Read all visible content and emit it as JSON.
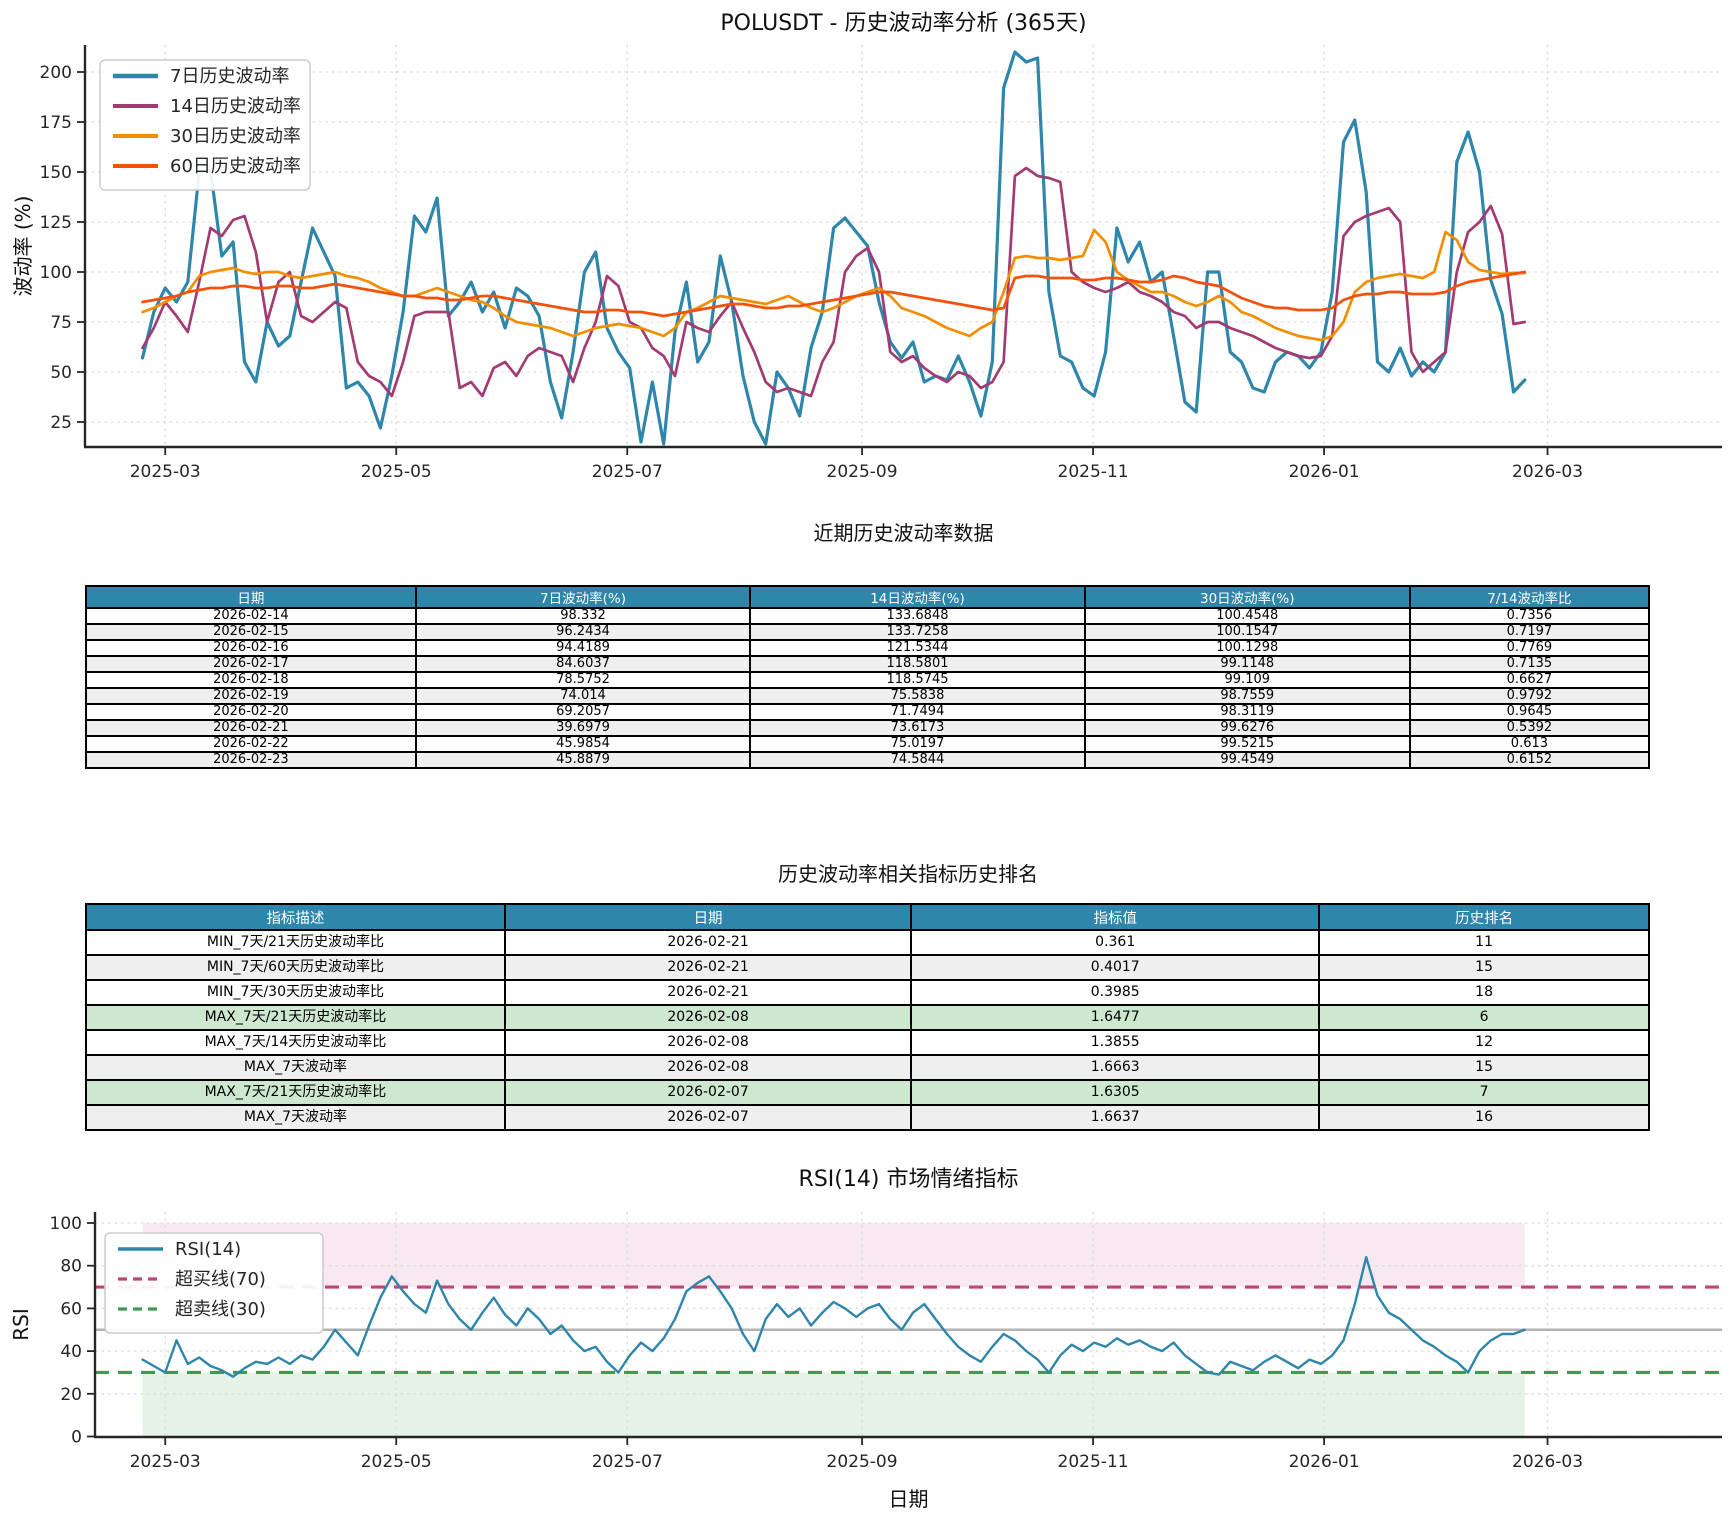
{
  "styles": {
    "table_header_bg": "#2e86ab",
    "table_header_text": "#ffffff",
    "row_alt_bg": "#efefef",
    "row_green_bg": "#cde8cf",
    "grid_color": "#dcdcdc",
    "spine_color": "#262626",
    "series_colors": {
      "vol7": "#2e86ab",
      "vol14": "#a23b72",
      "vol30": "#f18f01",
      "vol60": "#f4510c",
      "rsi": "#2e86ab",
      "overbought": "#c04577",
      "oversold": "#3a9d4f",
      "midline": "#b3b3b3"
    }
  },
  "volatility_table": {
    "title": "近期历史波动率数据",
    "columns": [
      "日期",
      "7日波动率(%)",
      "14日波动率(%)",
      "30日波动率(%)",
      "7/14波动率比"
    ],
    "rows": [
      [
        "2026-02-14",
        "98.332",
        "133.6848",
        "100.4548",
        "0.7356"
      ],
      [
        "2026-02-15",
        "96.2434",
        "133.7258",
        "100.1547",
        "0.7197"
      ],
      [
        "2026-02-16",
        "94.4189",
        "121.5344",
        "100.1298",
        "0.7769"
      ],
      [
        "2026-02-17",
        "84.6037",
        "118.5801",
        "99.1148",
        "0.7135"
      ],
      [
        "2026-02-18",
        "78.5752",
        "118.5745",
        "99.109",
        "0.6627"
      ],
      [
        "2026-02-19",
        "74.014",
        "75.5838",
        "98.7559",
        "0.9792"
      ],
      [
        "2026-02-20",
        "69.2057",
        "71.7494",
        "98.3119",
        "0.9645"
      ],
      [
        "2026-02-21",
        "39.6979",
        "73.6173",
        "99.6276",
        "0.5392"
      ],
      [
        "2026-02-22",
        "45.9854",
        "75.0197",
        "99.5215",
        "0.613"
      ],
      [
        "2026-02-23",
        "45.8879",
        "74.5844",
        "99.4549",
        "0.6152"
      ]
    ],
    "row_highlights": [
      "",
      "alt",
      "",
      "alt",
      "",
      "alt",
      "",
      "alt",
      "",
      "alt"
    ]
  },
  "ranking_table": {
    "title": "历史波动率相关指标历史排名",
    "columns": [
      "指标描述",
      "日期",
      "指标值",
      "历史排名"
    ],
    "rows": [
      [
        "MIN_7天/21天历史波动率比",
        "2026-02-21",
        "0.361",
        "11"
      ],
      [
        "MIN_7天/60天历史波动率比",
        "2026-02-21",
        "0.4017",
        "15"
      ],
      [
        "MIN_7天/30天历史波动率比",
        "2026-02-21",
        "0.3985",
        "18"
      ],
      [
        "MAX_7天/21天历史波动率比",
        "2026-02-08",
        "1.6477",
        "6"
      ],
      [
        "MAX_7天/14天历史波动率比",
        "2026-02-08",
        "1.3855",
        "12"
      ],
      [
        "MAX_7天波动率",
        "2026-02-08",
        "1.6663",
        "15"
      ],
      [
        "MAX_7天/21天历史波动率比",
        "2026-02-07",
        "1.6305",
        "7"
      ],
      [
        "MAX_7天波动率",
        "2026-02-07",
        "1.6637",
        "16"
      ]
    ],
    "row_highlights": [
      "",
      "alt",
      "",
      "green",
      "",
      "alt",
      "green",
      "alt"
    ]
  },
  "chart_data": [
    {
      "type": "line",
      "title": "POLUSDT - 历史波动率分析 (365天)",
      "ylabel": "波动率 (%)",
      "xlabel": "近期历史波动率数据",
      "x_tick_labels": [
        "2025-03",
        "2025-05",
        "2025-07",
        "2025-09",
        "2025-11",
        "2026-01",
        "2026-03"
      ],
      "x_tick_days": [
        6,
        67,
        128,
        190,
        251,
        312,
        371
      ],
      "y_ticks": [
        25,
        50,
        75,
        100,
        125,
        150,
        175,
        200
      ],
      "ylim": [
        12.5,
        213.5
      ],
      "x_range_days": [
        0,
        365
      ],
      "grid": true,
      "legend_position": "upper-left",
      "series": [
        {
          "name": "7日历史波动率",
          "color": "#2e86ab",
          "width": 3.2,
          "values": [
            57,
            80,
            92,
            85,
            95,
            150,
            151,
            108,
            115,
            55,
            45,
            75,
            63,
            68,
            95,
            122,
            110,
            98,
            42,
            45,
            38,
            22,
            48,
            80,
            128,
            120,
            137,
            78,
            85,
            95,
            80,
            90,
            72,
            92,
            88,
            78,
            45,
            27,
            60,
            100,
            110,
            72,
            60,
            52,
            15,
            45,
            14,
            70,
            95,
            55,
            65,
            108,
            85,
            48,
            25,
            14,
            50,
            42,
            28,
            62,
            80,
            122,
            127,
            120,
            113,
            85,
            65,
            57,
            65,
            45,
            48,
            46,
            58,
            45,
            28,
            55,
            192,
            210,
            205,
            207,
            90,
            58,
            55,
            42,
            38,
            60,
            122,
            105,
            115,
            95,
            100,
            68,
            35,
            30,
            100,
            100,
            60,
            55,
            42,
            40,
            55,
            60,
            58,
            52,
            60,
            90,
            165,
            176,
            140,
            55,
            50,
            62,
            48,
            55,
            50,
            60,
            155,
            170,
            150,
            96,
            79,
            40,
            46
          ]
        },
        {
          "name": "14日历史波动率",
          "color": "#a23b72",
          "width": 2.7,
          "values": [
            62,
            72,
            85,
            78,
            70,
            95,
            122,
            118,
            126,
            128,
            110,
            75,
            95,
            100,
            78,
            75,
            80,
            85,
            82,
            55,
            48,
            45,
            38,
            55,
            78,
            80,
            80,
            80,
            42,
            45,
            38,
            52,
            55,
            48,
            58,
            62,
            60,
            58,
            45,
            62,
            75,
            98,
            93,
            75,
            72,
            62,
            58,
            48,
            75,
            72,
            70,
            78,
            85,
            72,
            60,
            45,
            40,
            42,
            40,
            38,
            55,
            65,
            100,
            108,
            112,
            100,
            60,
            55,
            58,
            52,
            48,
            45,
            50,
            48,
            42,
            45,
            55,
            148,
            152,
            148,
            147,
            145,
            100,
            95,
            92,
            90,
            92,
            95,
            90,
            88,
            85,
            80,
            78,
            72,
            75,
            75,
            72,
            70,
            68,
            65,
            62,
            60,
            58,
            57,
            58,
            68,
            118,
            125,
            128,
            130,
            132,
            125,
            60,
            50,
            55,
            60,
            100,
            120,
            125,
            133,
            119,
            74,
            75
          ]
        },
        {
          "name": "30日历史波动率",
          "color": "#f18f01",
          "width": 2.7,
          "values": [
            80,
            82,
            85,
            88,
            90,
            98,
            100,
            101,
            102,
            100,
            99,
            100,
            100,
            98,
            97,
            98,
            99,
            100,
            98,
            97,
            95,
            92,
            90,
            88,
            88,
            90,
            92,
            90,
            88,
            86,
            85,
            82,
            78,
            75,
            74,
            73,
            72,
            70,
            68,
            70,
            72,
            73,
            74,
            73,
            72,
            70,
            68,
            72,
            80,
            82,
            85,
            88,
            87,
            86,
            85,
            84,
            86,
            88,
            85,
            82,
            80,
            82,
            85,
            88,
            90,
            92,
            88,
            82,
            80,
            78,
            75,
            72,
            70,
            68,
            72,
            75,
            90,
            107,
            108,
            107,
            107,
            106,
            107,
            108,
            121,
            115,
            100,
            96,
            93,
            90,
            90,
            88,
            85,
            83,
            85,
            88,
            85,
            80,
            78,
            75,
            72,
            70,
            68,
            67,
            66,
            68,
            75,
            90,
            95,
            97,
            98,
            99,
            98,
            97,
            100,
            120,
            116,
            105,
            101,
            100,
            99,
            99.6,
            99.5
          ]
        },
        {
          "name": "60日历史波动率",
          "color": "#f4510c",
          "width": 2.7,
          "values": [
            85,
            86,
            87,
            88,
            90,
            91,
            92,
            92,
            93,
            93,
            92,
            92,
            93,
            93,
            92,
            92,
            93,
            94,
            93,
            92,
            91,
            90,
            89,
            88,
            88,
            87,
            87,
            86,
            86,
            87,
            88,
            88,
            87,
            86,
            85,
            84,
            83,
            82,
            81,
            80,
            80,
            81,
            81,
            80,
            80,
            79,
            78,
            79,
            80,
            81,
            82,
            83,
            84,
            84,
            83,
            82,
            82,
            83,
            83,
            84,
            85,
            86,
            87,
            88,
            89,
            90,
            90,
            89,
            88,
            87,
            86,
            85,
            84,
            83,
            82,
            81,
            82,
            97,
            98,
            98,
            97,
            97,
            97,
            96,
            96,
            97,
            97,
            96,
            95,
            95,
            96,
            98,
            97,
            95,
            94,
            93,
            90,
            87,
            85,
            83,
            82,
            82,
            81,
            81,
            81,
            82,
            86,
            88,
            89,
            89,
            90,
            90,
            89,
            89,
            89,
            90,
            93,
            95,
            96,
            97,
            98,
            99,
            100
          ]
        }
      ]
    },
    {
      "type": "line",
      "title": "RSI(14) 市场情绪指标",
      "ylabel": "RSI",
      "xlabel": "日期",
      "x_tick_labels": [
        "2025-03",
        "2025-05",
        "2025-07",
        "2025-09",
        "2025-11",
        "2026-01",
        "2026-03"
      ],
      "x_tick_days": [
        6,
        67,
        128,
        190,
        251,
        312,
        371
      ],
      "y_ticks": [
        0,
        20,
        40,
        60,
        80,
        100
      ],
      "ylim": [
        0,
        105
      ],
      "x_range_days": [
        0,
        365
      ],
      "grid": true,
      "legend_position": "upper-left",
      "series": [
        {
          "name": "RSI(14)",
          "color": "#2e86ab",
          "width": 2.4,
          "values": [
            36,
            33,
            30,
            45,
            34,
            37,
            33,
            31,
            28,
            32,
            35,
            34,
            37,
            34,
            38,
            36,
            42,
            50,
            44,
            38,
            52,
            65,
            75,
            68,
            62,
            58,
            73,
            62,
            55,
            50,
            58,
            65,
            57,
            52,
            60,
            55,
            48,
            52,
            45,
            40,
            42,
            35,
            30,
            38,
            44,
            40,
            46,
            55,
            68,
            72,
            75,
            68,
            60,
            48,
            40,
            55,
            62,
            56,
            60,
            52,
            58,
            63,
            60,
            56,
            60,
            62,
            55,
            50,
            58,
            62,
            55,
            48,
            42,
            38,
            35,
            42,
            48,
            45,
            40,
            36,
            30,
            38,
            43,
            40,
            44,
            42,
            46,
            43,
            45,
            42,
            40,
            44,
            38,
            34,
            30,
            29,
            35,
            33,
            31,
            35,
            38,
            35,
            32,
            36,
            34,
            38,
            45,
            62,
            84,
            66,
            58,
            55,
            50,
            45,
            42,
            38,
            35,
            30,
            40,
            45,
            48,
            48,
            50
          ]
        }
      ],
      "reference_lines": [
        {
          "name": "中线(50)",
          "value": 50,
          "color": "#b3b3b3",
          "style": "solid",
          "width": 2.6,
          "in_legend": false
        },
        {
          "name": "超买线(70)",
          "value": 70,
          "color": "#c04577",
          "style": "dashed",
          "width": 3.2,
          "in_legend": true
        },
        {
          "name": "超卖线(30)",
          "value": 30,
          "color": "#3a9d4f",
          "style": "dashed",
          "width": 3.2,
          "in_legend": true
        }
      ],
      "bands": [
        {
          "from": 70,
          "to": 100,
          "color": "#f8e9f0"
        },
        {
          "from": 0,
          "to": 30,
          "color": "#e7f2e7"
        }
      ]
    }
  ]
}
